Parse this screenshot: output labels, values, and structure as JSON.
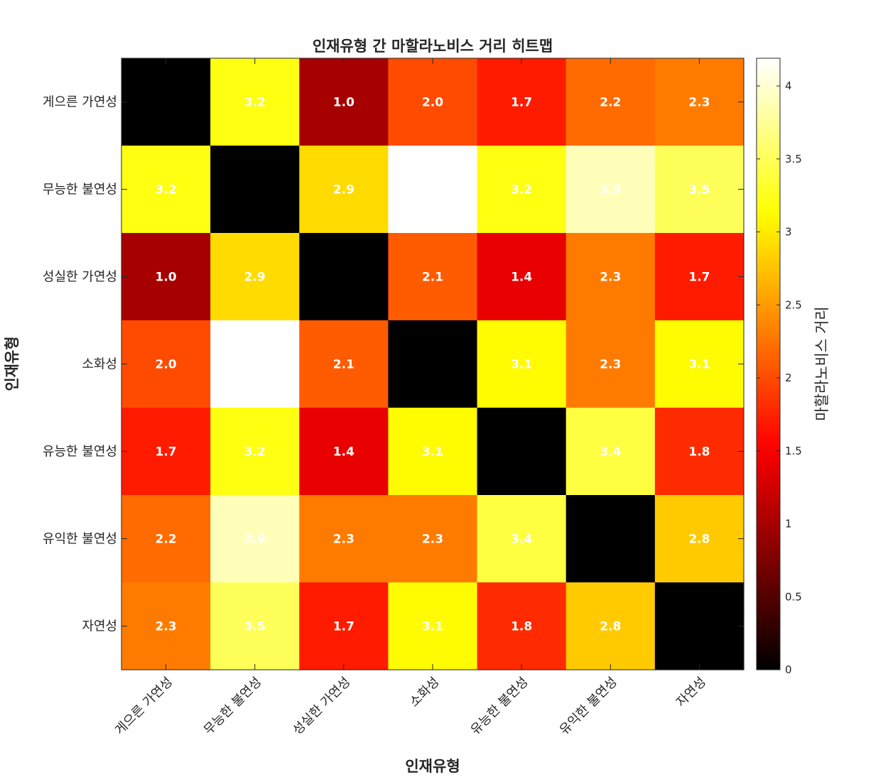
{
  "chart_data": {
    "type": "heatmap",
    "title": "인재유형 간 마할라노비스 거리 히트맵",
    "xlabel": "인재유형",
    "ylabel": "인재유형",
    "colorbar_label": "마할라노비스 거리",
    "colormap": "hot",
    "clim": [
      0,
      4.19
    ],
    "colorbar_ticks": [
      "0",
      "0.5",
      "1",
      "1.5",
      "2",
      "2.5",
      "3",
      "3.5",
      "4"
    ],
    "colorbar_tick_values": [
      0,
      0.5,
      1,
      1.5,
      2,
      2.5,
      3,
      3.5,
      4
    ],
    "categories": [
      "게으른 가연성",
      "무능한 불연성",
      "성실한 가연성",
      "소화성",
      "유능한 불연성",
      "유익한 불연성",
      "자연성"
    ],
    "values": [
      [
        0.0,
        3.2,
        1.0,
        2.0,
        1.7,
        2.2,
        2.3
      ],
      [
        3.2,
        0.0,
        2.9,
        4.19,
        3.2,
        3.9,
        3.5
      ],
      [
        1.0,
        2.9,
        0.0,
        2.1,
        1.4,
        2.3,
        1.7
      ],
      [
        2.0,
        4.19,
        2.1,
        0.0,
        3.1,
        2.3,
        3.1
      ],
      [
        1.7,
        3.2,
        1.4,
        3.1,
        0.0,
        3.4,
        1.8
      ],
      [
        2.2,
        3.9,
        2.3,
        2.3,
        3.4,
        0.0,
        2.8
      ],
      [
        2.3,
        3.5,
        1.7,
        3.1,
        1.8,
        2.8,
        0.0
      ]
    ],
    "labels": [
      [
        "",
        "3.2",
        "1.0",
        "2.0",
        "1.7",
        "2.2",
        "2.3"
      ],
      [
        "3.2",
        "",
        "2.9",
        "",
        "3.2",
        "3.9",
        "3.5"
      ],
      [
        "1.0",
        "2.9",
        "",
        "2.1",
        "1.4",
        "2.3",
        "1.7"
      ],
      [
        "2.0",
        "",
        "2.1",
        "",
        "3.1",
        "2.3",
        "3.1"
      ],
      [
        "1.7",
        "3.2",
        "1.4",
        "3.1",
        "",
        "3.4",
        "1.8"
      ],
      [
        "2.2",
        "3.9",
        "2.3",
        "2.3",
        "3.4",
        "",
        "2.8"
      ],
      [
        "2.3",
        "3.5",
        "1.7",
        "3.1",
        "1.8",
        "2.8",
        ""
      ]
    ],
    "grid": false
  }
}
